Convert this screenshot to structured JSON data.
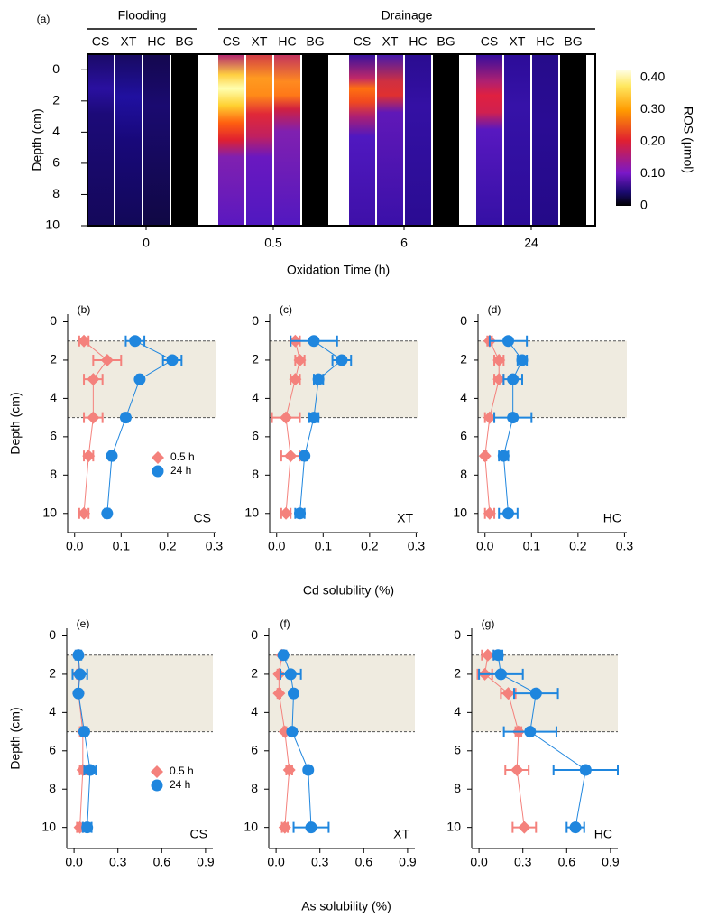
{
  "chart_data": [
    {
      "type": "heatmap",
      "panel": "(a)",
      "groups": [
        "Flooding",
        "Drainage"
      ],
      "columns": [
        "CS",
        "XT",
        "HC",
        "BG"
      ],
      "categories": [
        "0",
        "0.5",
        "6",
        "24"
      ],
      "xlabel": "Oxidation Time (h)",
      "ylabel": "Depth (cm)",
      "ylim": [
        -1,
        10
      ],
      "yticks": [
        0,
        2,
        4,
        6,
        8,
        10
      ],
      "colorbar": {
        "label": "ROS (μmol)",
        "lim": [
          0,
          0.425
        ],
        "ticks": [
          0,
          {
            "value": 0.1,
            "label": "0.10"
          },
          {
            "value": 0.2,
            "label": "0.20"
          },
          {
            "value": 0.3,
            "label": "0.30"
          },
          {
            "value": 0.4,
            "label": "0.40"
          }
        ]
      }
    },
    {
      "type": "line",
      "panel": "(b)",
      "label": "CS",
      "ylabel": "Depth (cm)",
      "legend": true,
      "depths": [
        1,
        2,
        3,
        5,
        7,
        10
      ],
      "shade": [
        1,
        5
      ],
      "xlim": [
        -0.015,
        0.305
      ],
      "ylim": [
        -0.4,
        11
      ],
      "xticks": [
        {
          "value": 0,
          "label": "0.0"
        },
        0.1,
        0.2,
        0.3
      ],
      "yticks": [
        0,
        2,
        4,
        6,
        8,
        10
      ],
      "series": [
        {
          "name": "0.5 h",
          "color": "#f4817c",
          "marker": "diamond",
          "values": [
            0.02,
            0.07,
            0.04,
            0.04,
            0.03,
            0.02
          ],
          "errors": [
            0.01,
            0.03,
            0.02,
            0.02,
            0.01,
            0.01
          ]
        },
        {
          "name": "24 h",
          "color": "#1f86de",
          "marker": "circle",
          "values": [
            0.13,
            0.21,
            0.14,
            0.11,
            0.08,
            0.07
          ],
          "errors": [
            0.02,
            0.02,
            0.005,
            0.005,
            0.005,
            0.005
          ]
        }
      ]
    },
    {
      "type": "line",
      "panel": "(c)",
      "label": "XT",
      "xlabel": "Cd solubility (%)",
      "legend": false,
      "depths": [
        1,
        2,
        3,
        5,
        7,
        10
      ],
      "shade": [
        1,
        5
      ],
      "xlim": [
        -0.015,
        0.305
      ],
      "ylim": [
        -0.4,
        11
      ],
      "xticks": [
        {
          "value": 0,
          "label": "0.0"
        },
        0.1,
        0.2,
        0.3
      ],
      "yticks": [
        0,
        2,
        4,
        6,
        8,
        10
      ],
      "series": [
        {
          "name": "0.5 h",
          "color": "#f4817c",
          "marker": "diamond",
          "values": [
            0.04,
            0.05,
            0.04,
            0.02,
            0.03,
            0.02
          ],
          "errors": [
            0.01,
            0.01,
            0.01,
            0.03,
            0.02,
            0.01
          ]
        },
        {
          "name": "24 h",
          "color": "#1f86de",
          "marker": "circle",
          "values": [
            0.08,
            0.14,
            0.09,
            0.08,
            0.06,
            0.05
          ],
          "errors": [
            0.05,
            0.02,
            0.01,
            0.01,
            0.005,
            0.01
          ]
        }
      ]
    },
    {
      "type": "line",
      "panel": "(d)",
      "label": "HC",
      "legend": false,
      "depths": [
        1,
        2,
        3,
        5,
        7,
        10
      ],
      "shade": [
        1,
        5
      ],
      "xlim": [
        -0.015,
        0.305
      ],
      "ylim": [
        -0.4,
        11
      ],
      "xticks": [
        {
          "value": 0,
          "label": "0.0"
        },
        0.1,
        0.2,
        0.3
      ],
      "yticks": [
        0,
        2,
        4,
        6,
        8,
        10
      ],
      "series": [
        {
          "name": "0.5 h",
          "color": "#f4817c",
          "marker": "diamond",
          "values": [
            0.01,
            0.03,
            0.03,
            0.01,
            0.0,
            0.01
          ],
          "errors": [
            0.005,
            0.01,
            0.01,
            0.01,
            0.003,
            0.01
          ]
        },
        {
          "name": "24 h",
          "color": "#1f86de",
          "marker": "circle",
          "values": [
            0.05,
            0.08,
            0.06,
            0.06,
            0.04,
            0.05
          ],
          "errors": [
            0.04,
            0.01,
            0.02,
            0.04,
            0.01,
            0.02
          ]
        }
      ]
    },
    {
      "type": "line",
      "panel": "(e)",
      "label": "CS",
      "ylabel": "Depth (cm)",
      "legend": true,
      "depths": [
        1,
        2,
        3,
        5,
        7,
        10
      ],
      "shade": [
        1,
        5
      ],
      "xlim": [
        -0.05,
        0.95
      ],
      "ylim": [
        -0.4,
        11.1
      ],
      "xticks": [
        {
          "value": 0,
          "label": "0.0"
        },
        0.3,
        0.6,
        0.9
      ],
      "yticks": [
        0,
        2,
        4,
        6,
        8,
        10
      ],
      "series": [
        {
          "name": "0.5 h",
          "color": "#f4817c",
          "marker": "diamond",
          "values": [
            0.03,
            0.03,
            0.03,
            0.06,
            0.06,
            0.04
          ],
          "errors": [
            0.01,
            0.01,
            0.01,
            0.02,
            0.02,
            0.02
          ]
        },
        {
          "name": "24 h",
          "color": "#1f86de",
          "marker": "circle",
          "values": [
            0.03,
            0.04,
            0.03,
            0.07,
            0.11,
            0.09
          ],
          "errors": [
            0.02,
            0.05,
            0.01,
            0.02,
            0.04,
            0.03
          ]
        }
      ]
    },
    {
      "type": "line",
      "panel": "(f)",
      "label": "XT",
      "xlabel": "As solubility (%)",
      "legend": false,
      "depths": [
        1,
        2,
        3,
        5,
        7,
        10
      ],
      "shade": [
        1,
        5
      ],
      "xlim": [
        -0.05,
        0.95
      ],
      "ylim": [
        -0.4,
        11.1
      ],
      "xticks": [
        {
          "value": 0,
          "label": "0.0"
        },
        0.3,
        0.6,
        0.9
      ],
      "yticks": [
        0,
        2,
        4,
        6,
        8,
        10
      ],
      "series": [
        {
          "name": "0.5 h",
          "color": "#f4817c",
          "marker": "diamond",
          "values": [
            0.04,
            0.02,
            0.02,
            0.06,
            0.09,
            0.06
          ],
          "errors": [
            0.01,
            0.01,
            0.01,
            0.01,
            0.02,
            0.02
          ]
        },
        {
          "name": "24 h",
          "color": "#1f86de",
          "marker": "circle",
          "values": [
            0.05,
            0.1,
            0.12,
            0.11,
            0.22,
            0.24
          ],
          "errors": [
            0.02,
            0.07,
            0.01,
            0.01,
            0.01,
            0.12
          ]
        }
      ]
    },
    {
      "type": "line",
      "panel": "(g)",
      "label": "HC",
      "legend": false,
      "depths": [
        1,
        2,
        3,
        5,
        7,
        10
      ],
      "shade": [
        1,
        5
      ],
      "xlim": [
        -0.05,
        0.95
      ],
      "ylim": [
        -0.4,
        11.1
      ],
      "xticks": [
        {
          "value": 0,
          "label": "0.0"
        },
        0.3,
        0.6,
        0.9
      ],
      "yticks": [
        0,
        2,
        4,
        6,
        8,
        10
      ],
      "series": [
        {
          "name": "0.5 h",
          "color": "#f4817c",
          "marker": "diamond",
          "values": [
            0.06,
            0.04,
            0.2,
            0.27,
            0.26,
            0.31
          ],
          "errors": [
            0.04,
            0.05,
            0.05,
            0.02,
            0.08,
            0.08
          ]
        },
        {
          "name": "24 h",
          "color": "#1f86de",
          "marker": "circle",
          "values": [
            0.13,
            0.15,
            0.39,
            0.35,
            0.73,
            0.66
          ],
          "errors": [
            0.03,
            0.15,
            0.15,
            0.18,
            0.22,
            0.06
          ]
        }
      ]
    }
  ]
}
